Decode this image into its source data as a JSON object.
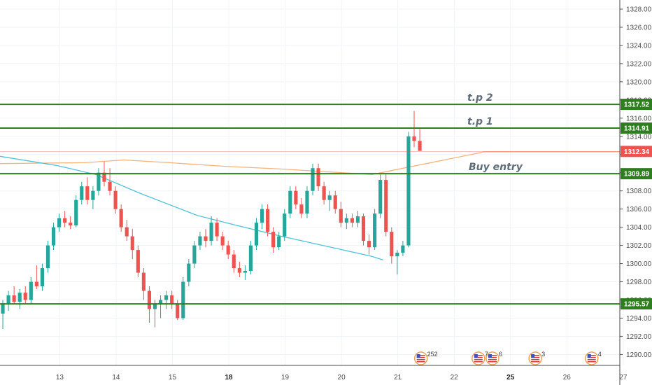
{
  "chart_data": {
    "type": "candlestick",
    "y_axis": {
      "position": "right",
      "range": [
        1288.8,
        1329.0
      ],
      "ticks": [
        "1290.00",
        "1292.00",
        "1294.00",
        "1296.00",
        "1298.00",
        "1300.00",
        "1302.00",
        "1304.00",
        "1306.00",
        "1308.00",
        "1310.00",
        "1312.00",
        "1314.00",
        "1316.00",
        "1318.00",
        "1320.00",
        "1322.00",
        "1324.00",
        "1326.00",
        "1328.00"
      ]
    },
    "x_axis": {
      "range": [
        0,
        110
      ],
      "ticks": [
        {
          "label": "13",
          "x": 10.6,
          "bold": false
        },
        {
          "label": "14",
          "x": 20.6,
          "bold": false
        },
        {
          "label": "15",
          "x": 30.6,
          "bold": false
        },
        {
          "label": "18",
          "x": 40.6,
          "bold": true
        },
        {
          "label": "19",
          "x": 50.6,
          "bold": false
        },
        {
          "label": "20",
          "x": 60.6,
          "bold": false
        },
        {
          "label": "21",
          "x": 70.6,
          "bold": false
        },
        {
          "label": "22",
          "x": 80.6,
          "bold": false
        },
        {
          "label": "25",
          "x": 90.6,
          "bold": true
        },
        {
          "label": "26",
          "x": 100.6,
          "bold": false
        },
        {
          "label": "27",
          "x": 110.6,
          "bold": false
        }
      ]
    },
    "grid": true,
    "horizontal_levels": [
      {
        "label": "t.p 2",
        "price": 1317.52,
        "tag": "1317.52",
        "color": "#2e7d1f"
      },
      {
        "label": "t.p 1",
        "price": 1314.91,
        "tag": "1314.91",
        "color": "#2e7d1f"
      },
      {
        "label": "Buy entry",
        "price": 1309.89,
        "tag": "1309.89",
        "color": "#2e7d1f"
      },
      {
        "label": "",
        "price": 1295.57,
        "tag": "1295.57",
        "color": "#2e7d1f"
      }
    ],
    "current_price": {
      "value": 1312.34,
      "tag": "1312.34",
      "color": "#ef5350"
    },
    "moving_averages": [
      {
        "color": "#f7b27a",
        "points": [
          [
            0,
            1311.0
          ],
          [
            15,
            1311.1
          ],
          [
            22,
            1311.4
          ],
          [
            30,
            1311.1
          ],
          [
            40,
            1310.7
          ],
          [
            50,
            1310.4
          ],
          [
            58,
            1310.1
          ],
          [
            66,
            1309.8
          ],
          [
            86,
            1312.3
          ],
          [
            110,
            1312.3
          ]
        ]
      },
      {
        "color": "#4fc3d9",
        "points": [
          [
            0,
            1311.8
          ],
          [
            10,
            1310.8
          ],
          [
            17,
            1309.8
          ],
          [
            25,
            1307.7
          ],
          [
            35,
            1305.3
          ],
          [
            42,
            1304.2
          ],
          [
            50,
            1303.0
          ],
          [
            58,
            1301.9
          ],
          [
            66,
            1300.8
          ],
          [
            68,
            1300.4
          ]
        ]
      }
    ],
    "events": [
      {
        "x": 74.7,
        "count": "25",
        "extra": "2"
      },
      {
        "x": 84.9,
        "count": "7",
        "extra": ""
      },
      {
        "x": 87.4,
        "count": "6",
        "extra": ""
      },
      {
        "x": 95.0,
        "count": "3",
        "extra": ""
      },
      {
        "x": 105.0,
        "count": "4",
        "extra": ""
      }
    ],
    "colors": {
      "up": "#26a69a",
      "down": "#ef5350",
      "grid": "#f0f3fa",
      "axis": "#4a4a4a",
      "level": "#2e7d1f"
    },
    "candles": [
      {
        "o": 1294.5,
        "h": 1296.0,
        "l": 1292.8,
        "c": 1295.5
      },
      {
        "o": 1295.5,
        "h": 1297.0,
        "l": 1294.8,
        "c": 1296.5
      },
      {
        "o": 1296.5,
        "h": 1297.5,
        "l": 1295.5,
        "c": 1295.8
      },
      {
        "o": 1295.8,
        "h": 1297.2,
        "l": 1295.0,
        "c": 1296.8
      },
      {
        "o": 1296.8,
        "h": 1297.5,
        "l": 1295.5,
        "c": 1296.0
      },
      {
        "o": 1296.0,
        "h": 1298.5,
        "l": 1295.5,
        "c": 1298.0
      },
      {
        "o": 1298.0,
        "h": 1299.8,
        "l": 1297.2,
        "c": 1297.5
      },
      {
        "o": 1297.5,
        "h": 1300.0,
        "l": 1297.0,
        "c": 1299.5
      },
      {
        "o": 1299.5,
        "h": 1302.5,
        "l": 1299.0,
        "c": 1302.0
      },
      {
        "o": 1302.0,
        "h": 1304.5,
        "l": 1301.5,
        "c": 1304.0
      },
      {
        "o": 1304.0,
        "h": 1305.5,
        "l": 1303.5,
        "c": 1305.0
      },
      {
        "o": 1305.0,
        "h": 1305.8,
        "l": 1304.0,
        "c": 1304.5
      },
      {
        "o": 1304.5,
        "h": 1305.2,
        "l": 1303.8,
        "c": 1304.2
      },
      {
        "o": 1304.2,
        "h": 1307.5,
        "l": 1304.0,
        "c": 1307.0
      },
      {
        "o": 1307.0,
        "h": 1309.0,
        "l": 1306.5,
        "c": 1308.5
      },
      {
        "o": 1308.5,
        "h": 1309.5,
        "l": 1306.5,
        "c": 1307.0
      },
      {
        "o": 1307.0,
        "h": 1308.5,
        "l": 1306.0,
        "c": 1308.0
      },
      {
        "o": 1308.0,
        "h": 1310.5,
        "l": 1307.5,
        "c": 1310.0
      },
      {
        "o": 1310.0,
        "h": 1311.2,
        "l": 1308.5,
        "c": 1309.0
      },
      {
        "o": 1309.0,
        "h": 1310.5,
        "l": 1307.5,
        "c": 1308.0
      },
      {
        "o": 1308.0,
        "h": 1308.5,
        "l": 1305.5,
        "c": 1306.0
      },
      {
        "o": 1306.0,
        "h": 1306.5,
        "l": 1303.5,
        "c": 1304.0
      },
      {
        "o": 1304.0,
        "h": 1304.8,
        "l": 1302.5,
        "c": 1303.0
      },
      {
        "o": 1303.0,
        "h": 1303.8,
        "l": 1300.5,
        "c": 1301.5
      },
      {
        "o": 1301.5,
        "h": 1302.0,
        "l": 1298.5,
        "c": 1299.0
      },
      {
        "o": 1299.0,
        "h": 1299.5,
        "l": 1296.0,
        "c": 1297.0
      },
      {
        "o": 1297.0,
        "h": 1297.5,
        "l": 1293.5,
        "c": 1295.0
      },
      {
        "o": 1295.0,
        "h": 1296.0,
        "l": 1293.0,
        "c": 1295.5
      },
      {
        "o": 1295.5,
        "h": 1296.5,
        "l": 1294.0,
        "c": 1296.0
      },
      {
        "o": 1296.0,
        "h": 1297.0,
        "l": 1295.0,
        "c": 1296.5
      },
      {
        "o": 1296.5,
        "h": 1297.0,
        "l": 1295.0,
        "c": 1295.5
      },
      {
        "o": 1295.5,
        "h": 1296.0,
        "l": 1293.8,
        "c": 1294.0
      },
      {
        "o": 1294.0,
        "h": 1298.5,
        "l": 1293.8,
        "c": 1298.0
      },
      {
        "o": 1298.0,
        "h": 1300.5,
        "l": 1297.5,
        "c": 1300.0
      },
      {
        "o": 1300.0,
        "h": 1302.5,
        "l": 1299.5,
        "c": 1302.0
      },
      {
        "o": 1302.0,
        "h": 1303.5,
        "l": 1301.5,
        "c": 1303.0
      },
      {
        "o": 1303.0,
        "h": 1303.8,
        "l": 1301.8,
        "c": 1302.5
      },
      {
        "o": 1302.5,
        "h": 1305.2,
        "l": 1302.0,
        "c": 1304.5
      },
      {
        "o": 1304.5,
        "h": 1305.0,
        "l": 1302.5,
        "c": 1303.0
      },
      {
        "o": 1303.0,
        "h": 1303.5,
        "l": 1301.5,
        "c": 1302.0
      },
      {
        "o": 1302.0,
        "h": 1302.5,
        "l": 1300.5,
        "c": 1301.0
      },
      {
        "o": 1301.0,
        "h": 1301.5,
        "l": 1299.0,
        "c": 1299.5
      },
      {
        "o": 1299.5,
        "h": 1300.2,
        "l": 1298.5,
        "c": 1299.0
      },
      {
        "o": 1299.0,
        "h": 1299.8,
        "l": 1298.2,
        "c": 1299.2
      },
      {
        "o": 1299.2,
        "h": 1302.5,
        "l": 1298.8,
        "c": 1302.0
      },
      {
        "o": 1302.0,
        "h": 1305.0,
        "l": 1301.5,
        "c": 1304.5
      },
      {
        "o": 1304.5,
        "h": 1306.5,
        "l": 1303.8,
        "c": 1306.0
      },
      {
        "o": 1306.0,
        "h": 1306.5,
        "l": 1303.0,
        "c": 1303.5
      },
      {
        "o": 1303.5,
        "h": 1304.0,
        "l": 1301.2,
        "c": 1301.8
      },
      {
        "o": 1301.8,
        "h": 1303.5,
        "l": 1301.5,
        "c": 1303.0
      },
      {
        "o": 1303.0,
        "h": 1306.0,
        "l": 1302.5,
        "c": 1305.5
      },
      {
        "o": 1305.5,
        "h": 1308.5,
        "l": 1305.0,
        "c": 1308.0
      },
      {
        "o": 1308.0,
        "h": 1308.5,
        "l": 1306.0,
        "c": 1306.5
      },
      {
        "o": 1306.5,
        "h": 1307.2,
        "l": 1305.0,
        "c": 1305.5
      },
      {
        "o": 1305.5,
        "h": 1308.5,
        "l": 1305.0,
        "c": 1308.0
      },
      {
        "o": 1308.0,
        "h": 1311.0,
        "l": 1307.5,
        "c": 1310.5
      },
      {
        "o": 1310.5,
        "h": 1311.0,
        "l": 1308.0,
        "c": 1308.5
      },
      {
        "o": 1308.5,
        "h": 1309.0,
        "l": 1306.5,
        "c": 1307.0
      },
      {
        "o": 1307.0,
        "h": 1308.0,
        "l": 1305.8,
        "c": 1307.5
      },
      {
        "o": 1307.5,
        "h": 1308.0,
        "l": 1305.5,
        "c": 1306.0
      },
      {
        "o": 1306.0,
        "h": 1306.8,
        "l": 1304.0,
        "c": 1304.5
      },
      {
        "o": 1304.5,
        "h": 1305.5,
        "l": 1303.8,
        "c": 1305.0
      },
      {
        "o": 1305.0,
        "h": 1305.5,
        "l": 1304.0,
        "c": 1304.5
      },
      {
        "o": 1304.5,
        "h": 1305.8,
        "l": 1304.0,
        "c": 1305.2
      },
      {
        "o": 1305.2,
        "h": 1305.5,
        "l": 1302.0,
        "c": 1302.5
      },
      {
        "o": 1302.5,
        "h": 1303.2,
        "l": 1301.0,
        "c": 1301.8
      },
      {
        "o": 1301.8,
        "h": 1306.0,
        "l": 1301.5,
        "c": 1305.5
      },
      {
        "o": 1305.5,
        "h": 1309.8,
        "l": 1305.0,
        "c": 1309.2
      },
      {
        "o": 1309.2,
        "h": 1309.8,
        "l": 1303.0,
        "c": 1303.5
      },
      {
        "o": 1303.5,
        "h": 1304.0,
        "l": 1300.0,
        "c": 1300.8
      },
      {
        "o": 1300.8,
        "h": 1301.5,
        "l": 1298.8,
        "c": 1301.2
      },
      {
        "o": 1301.2,
        "h": 1302.5,
        "l": 1300.8,
        "c": 1302.0
      },
      {
        "o": 1302.0,
        "h": 1314.5,
        "l": 1301.8,
        "c": 1314.0
      },
      {
        "o": 1314.0,
        "h": 1316.8,
        "l": 1312.8,
        "c": 1313.5
      },
      {
        "o": 1313.5,
        "h": 1314.8,
        "l": 1312.5,
        "c": 1312.4
      }
    ]
  }
}
